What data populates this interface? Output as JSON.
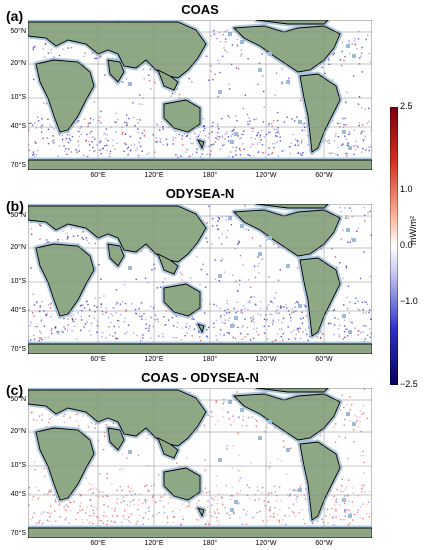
{
  "panels": [
    {
      "label": "(a)",
      "title": "COAS"
    },
    {
      "label": "(b)",
      "title": "ODYSEA-N"
    },
    {
      "label": "(c)",
      "title": "COAS - ODYSEA-N"
    }
  ],
  "lat_labels": [
    "50°N",
    "20°N",
    "10°S",
    "40°S",
    "70°S"
  ],
  "lon_labels": [
    "60°E",
    "120°E",
    "180°",
    "120°W",
    "60°W"
  ],
  "colorbar": {
    "ticks": [
      "2.5",
      "1.0",
      "0.0",
      "−1.0",
      "−2.5"
    ],
    "unit": "mW/m²",
    "colors": {
      "max": "#a50f15",
      "mid": "#ffffff",
      "min": "#08005a"
    }
  },
  "colors": {
    "ocean": "#ffffff",
    "land": "#8ea886",
    "coast_shade": "#9bbbd6",
    "grid": "#888888"
  }
}
